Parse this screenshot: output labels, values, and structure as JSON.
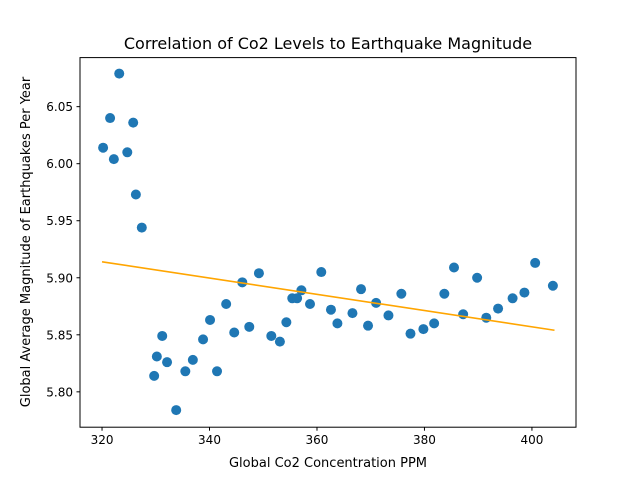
{
  "chart_data": {
    "type": "scatter",
    "title": "Correlation of Co2 Levels to Earthquake Magnitude",
    "xlabel": "Global Co2 Concentration PPM",
    "ylabel": "Global Average Magnitude of Earthquakes Per Year",
    "xlim": [
      315.9,
      408.2
    ],
    "ylim": [
      5.769,
      6.093
    ],
    "xticks": [
      320,
      340,
      360,
      380,
      400
    ],
    "yticks": [
      5.8,
      5.85,
      5.9,
      5.95,
      6.0,
      6.05
    ],
    "xtick_labels": [
      "320",
      "340",
      "360",
      "380",
      "400"
    ],
    "ytick_labels": [
      "5.80",
      "5.85",
      "5.90",
      "5.95",
      "6.00",
      "6.05"
    ],
    "grid": false,
    "scatter_color": "#1f77b4",
    "trend_color": "#ffa500",
    "points": [
      [
        320.2,
        6.014
      ],
      [
        321.5,
        6.04
      ],
      [
        322.2,
        6.004
      ],
      [
        323.2,
        6.079
      ],
      [
        324.7,
        6.01
      ],
      [
        325.8,
        6.036
      ],
      [
        326.3,
        5.973
      ],
      [
        327.4,
        5.944
      ],
      [
        329.7,
        5.814
      ],
      [
        330.2,
        5.831
      ],
      [
        331.2,
        5.849
      ],
      [
        332.1,
        5.826
      ],
      [
        333.8,
        5.784
      ],
      [
        335.5,
        5.818
      ],
      [
        336.9,
        5.828
      ],
      [
        338.8,
        5.846
      ],
      [
        340.1,
        5.863
      ],
      [
        341.4,
        5.818
      ],
      [
        343.1,
        5.877
      ],
      [
        344.6,
        5.852
      ],
      [
        346.1,
        5.896
      ],
      [
        347.4,
        5.857
      ],
      [
        349.2,
        5.904
      ],
      [
        351.5,
        5.849
      ],
      [
        353.1,
        5.844
      ],
      [
        354.3,
        5.861
      ],
      [
        355.4,
        5.882
      ],
      [
        356.3,
        5.882
      ],
      [
        357.1,
        5.889
      ],
      [
        358.7,
        5.877
      ],
      [
        360.8,
        5.905
      ],
      [
        362.6,
        5.872
      ],
      [
        363.8,
        5.86
      ],
      [
        366.6,
        5.869
      ],
      [
        368.2,
        5.89
      ],
      [
        369.5,
        5.858
      ],
      [
        371.0,
        5.878
      ],
      [
        373.3,
        5.867
      ],
      [
        375.7,
        5.886
      ],
      [
        377.4,
        5.851
      ],
      [
        379.8,
        5.855
      ],
      [
        381.8,
        5.86
      ],
      [
        383.7,
        5.886
      ],
      [
        385.5,
        5.909
      ],
      [
        387.2,
        5.868
      ],
      [
        389.8,
        5.9
      ],
      [
        391.5,
        5.865
      ],
      [
        393.7,
        5.873
      ],
      [
        396.4,
        5.882
      ],
      [
        398.6,
        5.887
      ],
      [
        400.6,
        5.913
      ],
      [
        403.9,
        5.893
      ]
    ],
    "trend_line": [
      [
        320.0,
        5.914
      ],
      [
        404.2,
        5.854
      ]
    ]
  }
}
